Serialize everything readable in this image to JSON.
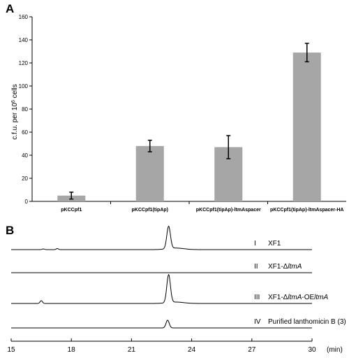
{
  "chart_data": [
    {
      "panel_label": "A",
      "type": "bar",
      "categories": [
        "pKCCpf1",
        "pKCCpf1(tipAp)",
        "pKCCpf1(tipAp)-ltmAspacer",
        "pKCCpf1(tipAp)-ltmAspacer-HA"
      ],
      "values": [
        5,
        48,
        47,
        129
      ],
      "error": [
        3,
        5,
        10,
        8
      ],
      "ylabel_parts": [
        "c.f.u. per 10",
        "6",
        " cells"
      ],
      "ylim": [
        0,
        160
      ],
      "yticks": [
        0,
        20,
        40,
        60,
        80,
        100,
        120,
        140,
        160
      ],
      "bar_color": "#a6a6a6",
      "grid": false
    },
    {
      "panel_label": "B",
      "type": "line",
      "xlabel": "(min)",
      "xlim": [
        15,
        30
      ],
      "xticks": [
        15,
        18,
        21,
        24,
        27,
        30
      ],
      "series": [
        {
          "roman": "I",
          "name": "XF1",
          "name_italic": "",
          "name_suffix": "",
          "peaks": [
            {
              "t": 22.85,
              "h": 1.0,
              "w": 0.09
            },
            {
              "t": 23.2,
              "h": 0.07,
              "w": 0.4
            },
            {
              "t": 17.3,
              "h": 0.05,
              "w": 0.05
            },
            {
              "t": 16.6,
              "h": 0.03,
              "w": 0.06
            }
          ]
        },
        {
          "roman": "II",
          "name": "XF1-Δ",
          "name_italic": "ltmA",
          "name_suffix": "",
          "peaks": []
        },
        {
          "roman": "III",
          "name": "XF1-Δ",
          "name_italic": "ltmA",
          "name_suffix": "-OE",
          "name_italic2": "ltmA",
          "peaks": [
            {
              "t": 22.85,
              "h": 1.0,
              "w": 0.09
            },
            {
              "t": 23.2,
              "h": 0.05,
              "w": 0.4
            },
            {
              "t": 16.5,
              "h": 0.1,
              "w": 0.06
            }
          ]
        },
        {
          "roman": "IV",
          "name": "Purified lanthomicin B (3)",
          "name_italic": "",
          "name_suffix": "",
          "peaks": [
            {
              "t": 22.8,
              "h": 1.0,
              "w": 0.08
            }
          ]
        }
      ],
      "line_color": "#000000"
    }
  ]
}
